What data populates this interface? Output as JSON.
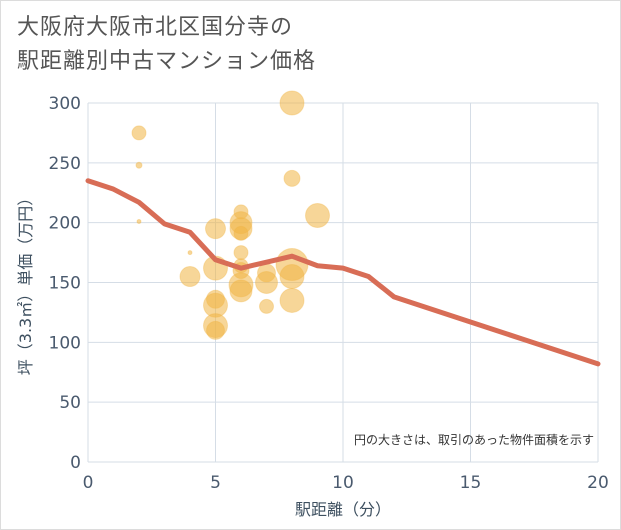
{
  "title_line1": "大阪府大阪市北区国分寺の",
  "title_line2": "駅距離別中古マンション価格",
  "chart_data": {
    "type": "scatter",
    "xlabel": "駅距離（分）",
    "ylabel": "坪（3.3㎡）単価（万円）",
    "xlim": [
      0,
      20
    ],
    "ylim": [
      0,
      300
    ],
    "x_ticks": [
      0,
      5,
      10,
      15,
      20
    ],
    "y_ticks": [
      0,
      50,
      100,
      150,
      200,
      250,
      300
    ],
    "grid": true,
    "note": "円の大きさは、取引のあった物件面積を示す",
    "colors": {
      "bubble": "#f0b444",
      "line": "#d86d56",
      "grid": "#d5dde6"
    },
    "bubbles": [
      {
        "x": 2,
        "y": 275,
        "size": 7
      },
      {
        "x": 2,
        "y": 248,
        "size": 3
      },
      {
        "x": 2,
        "y": 201,
        "size": 2
      },
      {
        "x": 4,
        "y": 175,
        "size": 2
      },
      {
        "x": 4,
        "y": 155,
        "size": 10
      },
      {
        "x": 5,
        "y": 195,
        "size": 10
      },
      {
        "x": 5,
        "y": 162,
        "size": 12
      },
      {
        "x": 5,
        "y": 136,
        "size": 9
      },
      {
        "x": 5,
        "y": 131,
        "size": 12
      },
      {
        "x": 5,
        "y": 114,
        "size": 12
      },
      {
        "x": 5,
        "y": 110,
        "size": 9
      },
      {
        "x": 6,
        "y": 209,
        "size": 7
      },
      {
        "x": 6,
        "y": 200,
        "size": 11
      },
      {
        "x": 6,
        "y": 195,
        "size": 11
      },
      {
        "x": 6,
        "y": 191,
        "size": 7
      },
      {
        "x": 6,
        "y": 175,
        "size": 7
      },
      {
        "x": 6,
        "y": 164,
        "size": 7
      },
      {
        "x": 6,
        "y": 160,
        "size": 8
      },
      {
        "x": 6,
        "y": 148,
        "size": 12
      },
      {
        "x": 6,
        "y": 143,
        "size": 11
      },
      {
        "x": 7,
        "y": 158,
        "size": 9
      },
      {
        "x": 7,
        "y": 150,
        "size": 11
      },
      {
        "x": 7,
        "y": 130,
        "size": 7
      },
      {
        "x": 8,
        "y": 300,
        "size": 12
      },
      {
        "x": 8,
        "y": 237,
        "size": 8
      },
      {
        "x": 8,
        "y": 165,
        "size": 16
      },
      {
        "x": 8,
        "y": 155,
        "size": 12
      },
      {
        "x": 8,
        "y": 135,
        "size": 12
      },
      {
        "x": 9,
        "y": 206,
        "size": 12
      }
    ],
    "trend": {
      "x": [
        0,
        1,
        2,
        3,
        4,
        5,
        6,
        7,
        8,
        9,
        10,
        11,
        12,
        13,
        14,
        15,
        16,
        17,
        18,
        19,
        20
      ],
      "y": [
        235,
        228,
        217,
        199,
        192,
        169,
        162,
        167,
        172,
        164,
        162,
        155,
        138,
        131,
        124,
        117,
        110,
        103,
        96,
        89,
        82
      ]
    }
  }
}
